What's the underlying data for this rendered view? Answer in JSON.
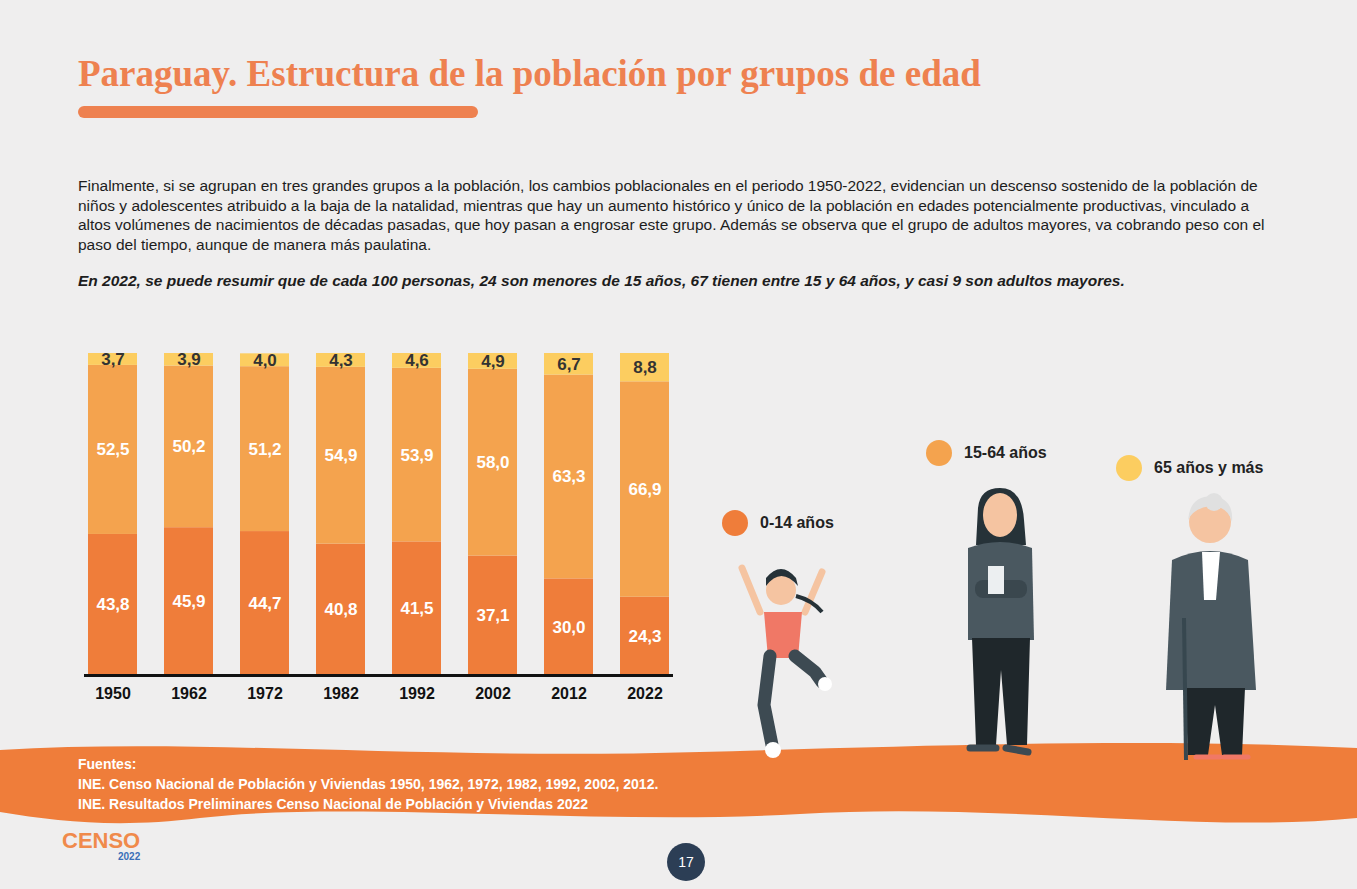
{
  "chart_data": {
    "type": "bar",
    "title": "Paraguay. Estructura de la población por grupos de edad",
    "subtitle": "Finalmente, si se agrupan en tres grandes grupos a la población, los cambios poblacionales en el periodo 1950-2022, evidencian un descenso sostenido de la población de niños y adolescentes atribuido a la baja de la natalidad, mientras que hay un aumento histórico y único de la población en edades potencialmente productivas, vinculado a altos volúmenes de nacimientos de décadas pasadas, que hoy pasan a engrosar este grupo. Además se observa que el grupo de adultos mayores, va cobrando peso con el paso del tiempo, aunque de manera más paulatina.",
    "categories": [
      "1950",
      "1962",
      "1972",
      "1982",
      "1992",
      "2002",
      "2012",
      "2022"
    ],
    "series": [
      {
        "name": "0-14 años",
        "color": "#ef7d3a",
        "values": [
          43.8,
          45.9,
          44.7,
          40.8,
          41.5,
          37.1,
          30.0,
          24.3
        ],
        "value_labels": [
          "43,8",
          "45,9",
          "44,7",
          "40,8",
          "41,5",
          "37,1",
          "30,0",
          "24,3"
        ]
      },
      {
        "name": "15-64 años",
        "color": "#f4a34e",
        "values": [
          52.5,
          50.2,
          51.2,
          54.9,
          53.9,
          58.0,
          63.3,
          66.9
        ],
        "value_labels": [
          "52,5",
          "50,2",
          "51,2",
          "54,9",
          "53,9",
          "58,0",
          "63,3",
          "66,9"
        ]
      },
      {
        "name": "65 años y más",
        "color": "#fccd60",
        "values": [
          3.7,
          3.9,
          4.0,
          4.3,
          4.6,
          4.9,
          6.7,
          8.8
        ],
        "value_labels": [
          "3,7",
          "3,9",
          "4,0",
          "4,3",
          "4,6",
          "4,9",
          "6,7",
          "8,8"
        ]
      }
    ],
    "ylim": [
      0,
      100
    ],
    "stacked": true,
    "data_labels": true,
    "tick_labels": "x",
    "legend": "right"
  },
  "page": {
    "summary": "En 2022, se puede resumir que de cada 100 personas, 24 son menores de 15 años, 67 tienen entre 15 y 64 años, y casi 9 son adultos mayores.",
    "sources_heading": "Fuentes:",
    "sources": [
      "INE. Censo Nacional de Población y Viviendas 1950, 1962, 1972, 1982, 1992, 2002, 2012.",
      "INE. Resultados Preliminares Censo Nacional de Población y Viviendas 2022"
    ],
    "page_number": 17,
    "logo": [
      "CENSO",
      "2022"
    ]
  }
}
